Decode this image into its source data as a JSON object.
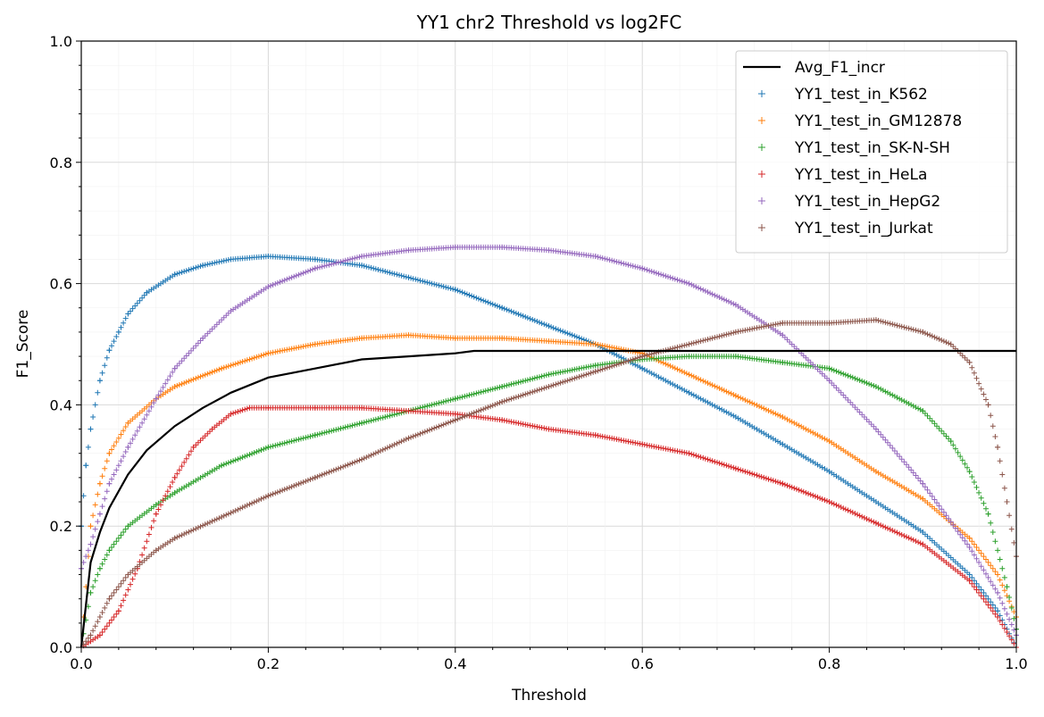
{
  "chart_data": {
    "type": "line",
    "title": "YY1 chr2 Threshold vs log2FC",
    "xlabel": "Threshold",
    "ylabel": "F1_Score",
    "xlim": [
      0,
      1
    ],
    "ylim": [
      0,
      1
    ],
    "xticks": [
      "0.0",
      "0.2",
      "0.4",
      "0.6",
      "0.8",
      "1.0"
    ],
    "yticks": [
      "0.0",
      "0.2",
      "0.4",
      "0.6",
      "0.8",
      "1.0"
    ],
    "grid": true,
    "legend_position": "top-right",
    "series": [
      {
        "name": "Avg_F1_incr",
        "style": "line",
        "color": "#000000",
        "points": [
          [
            0,
            0
          ],
          [
            0.01,
            0.14
          ],
          [
            0.02,
            0.19
          ],
          [
            0.03,
            0.23
          ],
          [
            0.05,
            0.285
          ],
          [
            0.07,
            0.325
          ],
          [
            0.1,
            0.365
          ],
          [
            0.13,
            0.395
          ],
          [
            0.16,
            0.42
          ],
          [
            0.2,
            0.445
          ],
          [
            0.25,
            0.46
          ],
          [
            0.3,
            0.475
          ],
          [
            0.35,
            0.48
          ],
          [
            0.4,
            0.485
          ],
          [
            0.42,
            0.489
          ],
          [
            0.5,
            0.489
          ],
          [
            0.6,
            0.489
          ],
          [
            0.7,
            0.489
          ],
          [
            0.8,
            0.489
          ],
          [
            0.9,
            0.489
          ],
          [
            1.0,
            0.489
          ]
        ]
      },
      {
        "name": "YY1_test_in_K562",
        "style": "markers",
        "color": "#1f77b4",
        "points": [
          [
            0,
            0.2
          ],
          [
            0.005,
            0.3
          ],
          [
            0.01,
            0.36
          ],
          [
            0.02,
            0.44
          ],
          [
            0.03,
            0.49
          ],
          [
            0.04,
            0.52
          ],
          [
            0.05,
            0.55
          ],
          [
            0.07,
            0.585
          ],
          [
            0.1,
            0.615
          ],
          [
            0.13,
            0.63
          ],
          [
            0.16,
            0.64
          ],
          [
            0.2,
            0.645
          ],
          [
            0.25,
            0.64
          ],
          [
            0.3,
            0.63
          ],
          [
            0.35,
            0.61
          ],
          [
            0.4,
            0.59
          ],
          [
            0.45,
            0.56
          ],
          [
            0.5,
            0.53
          ],
          [
            0.55,
            0.5
          ],
          [
            0.6,
            0.46
          ],
          [
            0.65,
            0.42
          ],
          [
            0.7,
            0.38
          ],
          [
            0.75,
            0.335
          ],
          [
            0.8,
            0.29
          ],
          [
            0.85,
            0.24
          ],
          [
            0.9,
            0.19
          ],
          [
            0.95,
            0.12
          ],
          [
            0.98,
            0.06
          ],
          [
            1.0,
            0.0
          ]
        ]
      },
      {
        "name": "YY1_test_in_GM12878",
        "style": "markers",
        "color": "#ff7f0e",
        "points": [
          [
            0,
            0.0
          ],
          [
            0.01,
            0.2
          ],
          [
            0.02,
            0.27
          ],
          [
            0.03,
            0.32
          ],
          [
            0.05,
            0.37
          ],
          [
            0.08,
            0.41
          ],
          [
            0.1,
            0.43
          ],
          [
            0.15,
            0.46
          ],
          [
            0.2,
            0.485
          ],
          [
            0.25,
            0.5
          ],
          [
            0.3,
            0.51
          ],
          [
            0.35,
            0.515
          ],
          [
            0.4,
            0.51
          ],
          [
            0.45,
            0.51
          ],
          [
            0.5,
            0.505
          ],
          [
            0.55,
            0.5
          ],
          [
            0.6,
            0.485
          ],
          [
            0.65,
            0.45
          ],
          [
            0.7,
            0.415
          ],
          [
            0.75,
            0.38
          ],
          [
            0.8,
            0.34
          ],
          [
            0.85,
            0.29
          ],
          [
            0.9,
            0.245
          ],
          [
            0.95,
            0.18
          ],
          [
            0.98,
            0.12
          ],
          [
            1.0,
            0.05
          ]
        ]
      },
      {
        "name": "YY1_test_in_SK-N-SH",
        "style": "markers",
        "color": "#2ca02c",
        "points": [
          [
            0,
            0.0
          ],
          [
            0.01,
            0.09
          ],
          [
            0.02,
            0.13
          ],
          [
            0.03,
            0.16
          ],
          [
            0.05,
            0.2
          ],
          [
            0.08,
            0.235
          ],
          [
            0.1,
            0.255
          ],
          [
            0.15,
            0.3
          ],
          [
            0.2,
            0.33
          ],
          [
            0.25,
            0.35
          ],
          [
            0.3,
            0.37
          ],
          [
            0.35,
            0.39
          ],
          [
            0.4,
            0.41
          ],
          [
            0.45,
            0.43
          ],
          [
            0.5,
            0.45
          ],
          [
            0.55,
            0.465
          ],
          [
            0.6,
            0.475
          ],
          [
            0.65,
            0.48
          ],
          [
            0.7,
            0.48
          ],
          [
            0.75,
            0.47
          ],
          [
            0.8,
            0.46
          ],
          [
            0.85,
            0.43
          ],
          [
            0.9,
            0.39
          ],
          [
            0.93,
            0.34
          ],
          [
            0.95,
            0.29
          ],
          [
            0.97,
            0.22
          ],
          [
            0.99,
            0.1
          ],
          [
            1.0,
            0.03
          ]
        ]
      },
      {
        "name": "YY1_test_in_HeLa",
        "style": "markers",
        "color": "#d62728",
        "points": [
          [
            0,
            0.0
          ],
          [
            0.02,
            0.02
          ],
          [
            0.04,
            0.06
          ],
          [
            0.06,
            0.13
          ],
          [
            0.08,
            0.22
          ],
          [
            0.1,
            0.28
          ],
          [
            0.12,
            0.33
          ],
          [
            0.14,
            0.36
          ],
          [
            0.16,
            0.385
          ],
          [
            0.18,
            0.395
          ],
          [
            0.2,
            0.395
          ],
          [
            0.25,
            0.395
          ],
          [
            0.3,
            0.395
          ],
          [
            0.35,
            0.39
          ],
          [
            0.4,
            0.385
          ],
          [
            0.45,
            0.375
          ],
          [
            0.5,
            0.36
          ],
          [
            0.55,
            0.35
          ],
          [
            0.6,
            0.335
          ],
          [
            0.65,
            0.32
          ],
          [
            0.7,
            0.295
          ],
          [
            0.75,
            0.27
          ],
          [
            0.8,
            0.24
          ],
          [
            0.85,
            0.205
          ],
          [
            0.9,
            0.17
          ],
          [
            0.95,
            0.11
          ],
          [
            0.98,
            0.05
          ],
          [
            1.0,
            0.0
          ]
        ]
      },
      {
        "name": "YY1_test_in_HepG2",
        "style": "markers",
        "color": "#9467bd",
        "points": [
          [
            0,
            0.13
          ],
          [
            0.01,
            0.17
          ],
          [
            0.02,
            0.22
          ],
          [
            0.03,
            0.27
          ],
          [
            0.05,
            0.33
          ],
          [
            0.08,
            0.41
          ],
          [
            0.1,
            0.46
          ],
          [
            0.13,
            0.51
          ],
          [
            0.16,
            0.555
          ],
          [
            0.2,
            0.595
          ],
          [
            0.25,
            0.625
          ],
          [
            0.3,
            0.645
          ],
          [
            0.35,
            0.655
          ],
          [
            0.4,
            0.66
          ],
          [
            0.45,
            0.66
          ],
          [
            0.5,
            0.655
          ],
          [
            0.55,
            0.645
          ],
          [
            0.6,
            0.625
          ],
          [
            0.65,
            0.6
          ],
          [
            0.7,
            0.565
          ],
          [
            0.75,
            0.515
          ],
          [
            0.8,
            0.44
          ],
          [
            0.85,
            0.36
          ],
          [
            0.9,
            0.27
          ],
          [
            0.95,
            0.165
          ],
          [
            0.98,
            0.09
          ],
          [
            1.0,
            0.02
          ]
        ]
      },
      {
        "name": "YY1_test_in_Jurkat",
        "style": "markers",
        "color": "#8c564b",
        "points": [
          [
            0,
            0.0
          ],
          [
            0.01,
            0.02
          ],
          [
            0.02,
            0.05
          ],
          [
            0.03,
            0.08
          ],
          [
            0.05,
            0.12
          ],
          [
            0.08,
            0.16
          ],
          [
            0.1,
            0.18
          ],
          [
            0.15,
            0.215
          ],
          [
            0.2,
            0.25
          ],
          [
            0.25,
            0.28
          ],
          [
            0.3,
            0.31
          ],
          [
            0.35,
            0.345
          ],
          [
            0.4,
            0.375
          ],
          [
            0.45,
            0.405
          ],
          [
            0.5,
            0.43
          ],
          [
            0.55,
            0.455
          ],
          [
            0.6,
            0.48
          ],
          [
            0.65,
            0.5
          ],
          [
            0.7,
            0.52
          ],
          [
            0.75,
            0.535
          ],
          [
            0.8,
            0.535
          ],
          [
            0.85,
            0.54
          ],
          [
            0.9,
            0.52
          ],
          [
            0.93,
            0.5
          ],
          [
            0.95,
            0.47
          ],
          [
            0.97,
            0.4
          ],
          [
            0.98,
            0.33
          ],
          [
            0.99,
            0.24
          ],
          [
            1.0,
            0.15
          ]
        ]
      }
    ]
  }
}
